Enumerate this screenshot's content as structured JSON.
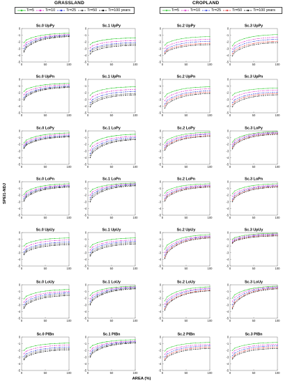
{
  "groups": [
    {
      "title": "GRASSLAND"
    },
    {
      "title": "CROPLAND"
    }
  ],
  "legends": [
    {
      "items": [
        {
          "label": "Tr=5",
          "color": "#33cc33",
          "marker": "dot",
          "dash": ""
        },
        {
          "label": "Tr=10",
          "color": "#dd33cc",
          "marker": "dot",
          "dash": "2,1"
        },
        {
          "label": "Tr=25",
          "color": "#3344dd",
          "marker": "dot",
          "dash": "2,1"
        },
        {
          "label": "Tr=50",
          "color": "#555555",
          "marker": "dot",
          "dash": "2,1"
        },
        {
          "label": "Tr=100 years",
          "color": "#111111",
          "marker": "dot",
          "dash": "2,1"
        }
      ]
    },
    {
      "items": [
        {
          "label": "Tr=5",
          "color": "#33cc33",
          "marker": "star",
          "dash": ""
        },
        {
          "label": "Tr=10",
          "color": "#dd33cc",
          "marker": "star",
          "dash": "2,1"
        },
        {
          "label": "Tr=25",
          "color": "#3344dd",
          "marker": "star",
          "dash": "2,1"
        },
        {
          "label": "Tr=50",
          "color": "#dd3333",
          "marker": "star",
          "dash": "2,1"
        },
        {
          "label": "Tr=100 years",
          "color": "#111111",
          "marker": "star",
          "dash": "2,1"
        }
      ]
    }
  ],
  "axis": {
    "ylabel": "SPEI1-NDJ",
    "xlabel": "AREA (%)",
    "xticks": [
      "0",
      "50",
      "100"
    ],
    "yticks": [
      "0",
      "-1",
      "-2",
      "-3",
      "-4",
      "-5"
    ]
  },
  "chart_data": {
    "type": "line",
    "x": [
      5,
      10,
      20,
      30,
      40,
      50,
      60,
      70,
      80,
      90,
      100
    ],
    "xlim": [
      0,
      100
    ],
    "ylim": [
      -5,
      0
    ],
    "series_names": [
      "Tr=5",
      "Tr=10",
      "Tr=25",
      "Tr=50",
      "Tr=100 years"
    ],
    "panels": [
      {
        "title": "Sc.0 UpPy",
        "start": [
          -2.1,
          -2.6,
          -3.0,
          -3.3,
          -3.5
        ],
        "end": [
          -0.7,
          -0.9,
          -1.0,
          -1.1,
          -1.2
        ]
      },
      {
        "title": "Sc.1 UpPy",
        "start": [
          -2.4,
          -2.9,
          -3.3,
          -3.5,
          -3.8
        ],
        "end": [
          -1.4,
          -1.8,
          -2.1,
          -2.3,
          -2.5
        ]
      },
      {
        "title": "Sc.2 UpPy",
        "start": [
          -2.5,
          -3.0,
          -3.4,
          -3.6,
          -3.8
        ],
        "end": [
          -1.2,
          -1.6,
          -1.9,
          -2.2,
          -2.4
        ]
      },
      {
        "title": "Sc.3 UpPy",
        "start": [
          -2.6,
          -3.1,
          -3.5,
          -3.8,
          -4.1
        ],
        "end": [
          -0.9,
          -1.3,
          -1.6,
          -1.9,
          -2.1
        ]
      },
      {
        "title": "Sc.0 UpPn",
        "start": [
          -1.8,
          -2.3,
          -2.7,
          -2.9,
          -3.1
        ],
        "end": [
          -0.6,
          -0.8,
          -1.0,
          -1.1,
          -1.2
        ]
      },
      {
        "title": "Sc.1 UpPn",
        "start": [
          -2.4,
          -3.0,
          -3.5,
          -3.8,
          -4.1
        ],
        "end": [
          -1.1,
          -1.5,
          -1.8,
          -2.1,
          -2.3
        ]
      },
      {
        "title": "Sc.2 UpPn",
        "start": [
          -2.6,
          -3.2,
          -3.7,
          -4.0,
          -4.3
        ],
        "end": [
          -1.1,
          -1.4,
          -1.7,
          -1.9,
          -2.1
        ]
      },
      {
        "title": "Sc.3 UpPn",
        "start": [
          -2.4,
          -3.0,
          -3.5,
          -3.8,
          -4.1
        ],
        "end": [
          -1.3,
          -1.6,
          -1.9,
          -2.1,
          -2.3
        ]
      },
      {
        "title": "Sc.0 LoPy",
        "start": [
          -1.8,
          -2.1,
          -2.3,
          -2.5,
          -2.6
        ],
        "end": [
          -0.3,
          -0.5,
          -0.7,
          -0.8,
          -0.9
        ]
      },
      {
        "title": "Sc.1 LoPy",
        "start": [
          -2.3,
          -2.9,
          -3.4,
          -3.7,
          -4.0
        ],
        "end": [
          -0.5,
          -0.8,
          -1.0,
          -1.2,
          -1.3
        ]
      },
      {
        "title": "Sc.2 LoPy",
        "start": [
          -1.8,
          -2.2,
          -2.5,
          -2.7,
          -2.9
        ],
        "end": [
          -0.2,
          -0.4,
          -0.5,
          -0.7,
          -0.8
        ]
      },
      {
        "title": "Sc.3 LoPy",
        "start": [
          -1.7,
          -2.0,
          -2.3,
          -2.5,
          -2.7
        ],
        "end": [
          -0.1,
          -0.2,
          -0.3,
          -0.4,
          -0.5
        ]
      },
      {
        "title": "Sc.0 LoPn",
        "start": [
          -1.9,
          -2.2,
          -2.5,
          -2.7,
          -2.9
        ],
        "end": [
          -0.3,
          -0.5,
          -0.6,
          -0.7,
          -0.8
        ]
      },
      {
        "title": "Sc.1 LoPn",
        "start": [
          -1.5,
          -2.0,
          -2.4,
          -2.7,
          -3.0
        ],
        "end": [
          -0.2,
          -0.3,
          -0.4,
          -0.5,
          -0.6
        ]
      },
      {
        "title": "Sc.2 LoPn",
        "start": [
          -1.7,
          -2.1,
          -2.5,
          -2.7,
          -2.9
        ],
        "end": [
          -0.3,
          -0.5,
          -0.6,
          -0.7,
          -0.8
        ]
      },
      {
        "title": "Sc.3 LoPn",
        "start": [
          -1.8,
          -2.2,
          -2.6,
          -2.8,
          -3.0
        ],
        "end": [
          -0.3,
          -0.5,
          -0.6,
          -0.7,
          -0.8
        ]
      },
      {
        "title": "Sc.0 UpUy",
        "start": [
          -2.0,
          -2.5,
          -2.9,
          -3.1,
          -3.3
        ],
        "end": [
          -0.8,
          -1.1,
          -1.4,
          -1.6,
          -1.8
        ]
      },
      {
        "title": "Sc.1 UpUy",
        "start": [
          -2.2,
          -2.6,
          -3.0,
          -3.3,
          -3.5
        ],
        "end": [
          -0.8,
          -1.1,
          -1.3,
          -1.5,
          -1.7
        ]
      },
      {
        "title": "Sc.2 UpUy",
        "start": [
          -2.5,
          -3.0,
          -3.4,
          -3.7,
          -3.9
        ],
        "end": [
          -0.3,
          -0.5,
          -0.6,
          -0.7,
          -0.8
        ]
      },
      {
        "title": "Sc.3 UpUy",
        "start": [
          -1.0,
          -1.2,
          -1.4,
          -1.5,
          -1.6
        ],
        "end": [
          -0.1,
          -0.2,
          -0.3,
          -0.4,
          -0.5
        ]
      },
      {
        "title": "Sc.0 LoUy",
        "start": [
          -2.1,
          -2.6,
          -3.0,
          -3.3,
          -3.5
        ],
        "end": [
          -0.7,
          -1.0,
          -1.2,
          -1.4,
          -1.6
        ]
      },
      {
        "title": "Sc.1 LoUy",
        "start": [
          -1.6,
          -2.1,
          -2.5,
          -2.8,
          -3.0
        ],
        "end": [
          -0.2,
          -0.3,
          -0.4,
          -0.5,
          -0.6
        ]
      },
      {
        "title": "Sc.2 LoUy",
        "start": [
          -2.4,
          -2.9,
          -3.3,
          -3.6,
          -3.8
        ],
        "end": [
          -0.3,
          -0.5,
          -0.6,
          -0.8,
          -0.9
        ]
      },
      {
        "title": "Sc.3 LoUy",
        "start": [
          -2.0,
          -2.5,
          -3.0,
          -3.4,
          -3.6
        ],
        "end": [
          -0.2,
          -0.3,
          -0.4,
          -0.5,
          -0.6
        ]
      },
      {
        "title": "Sc.0 PlBn",
        "start": [
          -2.0,
          -2.5,
          -2.9,
          -3.2,
          -3.4
        ],
        "end": [
          -0.9,
          -1.2,
          -1.5,
          -1.7,
          -1.9
        ]
      },
      {
        "title": "Sc.1 PlBn",
        "start": [
          -1.6,
          -2.1,
          -2.5,
          -2.8,
          -3.0
        ],
        "end": [
          -0.4,
          -0.6,
          -0.7,
          -0.8,
          -0.9
        ]
      },
      {
        "title": "Sc.2 PlBn",
        "start": [
          -2.1,
          -2.6,
          -3.0,
          -3.3,
          -3.5
        ],
        "end": [
          -0.8,
          -1.1,
          -1.3,
          -1.5,
          -1.7
        ]
      },
      {
        "title": "Sc.3 PlBn",
        "start": [
          -2.0,
          -2.4,
          -2.8,
          -3.1,
          -3.3
        ],
        "end": [
          -0.8,
          -1.1,
          -1.3,
          -1.5,
          -1.7
        ]
      }
    ]
  }
}
